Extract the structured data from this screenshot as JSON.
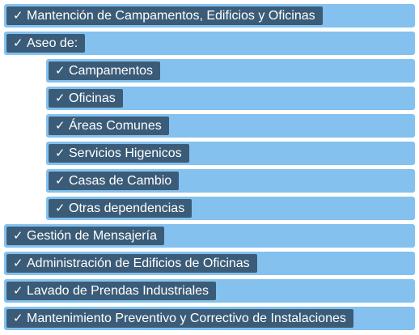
{
  "items": [
    {
      "label": "Mantención de Campamentos, Edificios y Oficinas",
      "level": 0
    },
    {
      "label": "Aseo de:",
      "level": 0
    },
    {
      "label": "Campamentos",
      "level": 1
    },
    {
      "label": "Oficinas",
      "level": 1
    },
    {
      "label": "Áreas Comunes",
      "level": 1
    },
    {
      "label": "Servicios Higenicos",
      "level": 1
    },
    {
      "label": "Casas de Cambio",
      "level": 1
    },
    {
      "label": "Otras dependencias",
      "level": 1
    },
    {
      "label": "Gestión de Mensajería",
      "level": 0
    },
    {
      "label": "Administración de Edificios de Oficinas",
      "level": 0
    },
    {
      "label": "Lavado de Prendas Industriales",
      "level": 0
    },
    {
      "label": "Mantenimiento Preventivo y Correctivo de Instalaciones",
      "level": 0
    }
  ],
  "check_glyph": "✓",
  "colors": {
    "row_background": "#84c1ee",
    "tag_background": "#3b5c78",
    "text": "#ffffff"
  }
}
